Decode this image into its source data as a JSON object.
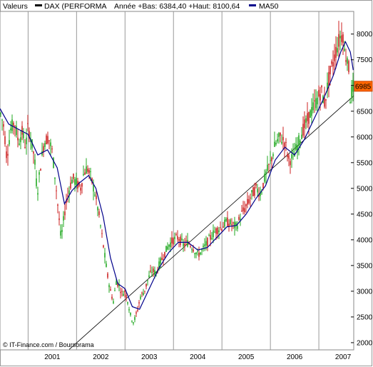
{
  "legend": {
    "label": "Valeurs",
    "series_name": "DAX (PERFORMA",
    "year_info": "Année +Bas: 6384,40 +Haut: 8100,64",
    "ma_name": "MA50",
    "colors": {
      "series": "#000000",
      "ma": "#00008b"
    }
  },
  "credit": "© IT-Finance.com / Boursorama",
  "last_price": "6985",
  "chart_data": {
    "type": "candlestick",
    "x_range": [
      2000.42,
      2007.72
    ],
    "y_range": [
      1860,
      8440
    ],
    "y_ticks": [
      2000,
      2500,
      3000,
      3500,
      4000,
      4500,
      5000,
      5500,
      6000,
      6500,
      7000,
      7500,
      8000
    ],
    "y_tick_labels": [
      "2000",
      "2500",
      "3000",
      "3500",
      "4000",
      "4500",
      "5000",
      "5500",
      "6000",
      "6500",
      "7000",
      "7500",
      "8000"
    ],
    "x_tick_labels": [
      {
        "year": 2001,
        "label": "2001"
      },
      {
        "year": 2002,
        "label": "2002"
      },
      {
        "year": 2003,
        "label": "2003"
      },
      {
        "year": 2004,
        "label": "2004"
      },
      {
        "year": 2005,
        "label": "2005"
      },
      {
        "year": 2006,
        "label": "2006"
      },
      {
        "year": 2007,
        "label": "2007"
      }
    ],
    "gridlines": "vertical",
    "up_color": "#22aa22",
    "down_color": "#cc2222",
    "price_path": [
      {
        "t": 2000.42,
        "v": 6500
      },
      {
        "t": 2000.5,
        "v": 6200
      },
      {
        "t": 2000.56,
        "v": 5600
      },
      {
        "t": 2000.64,
        "v": 6150
      },
      {
        "t": 2000.72,
        "v": 6300
      },
      {
        "t": 2000.8,
        "v": 5900
      },
      {
        "t": 2000.88,
        "v": 6100
      },
      {
        "t": 2000.95,
        "v": 5800
      },
      {
        "t": 2001.0,
        "v": 6200
      },
      {
        "t": 2001.06,
        "v": 5950
      },
      {
        "t": 2001.13,
        "v": 5600
      },
      {
        "t": 2001.19,
        "v": 4900
      },
      {
        "t": 2001.25,
        "v": 5400
      },
      {
        "t": 2001.33,
        "v": 5900
      },
      {
        "t": 2001.42,
        "v": 6000
      },
      {
        "t": 2001.5,
        "v": 5700
      },
      {
        "t": 2001.56,
        "v": 5200
      },
      {
        "t": 2001.62,
        "v": 4600
      },
      {
        "t": 2001.68,
        "v": 4000
      },
      {
        "t": 2001.72,
        "v": 4300
      },
      {
        "t": 2001.78,
        "v": 4700
      },
      {
        "t": 2001.85,
        "v": 5000
      },
      {
        "t": 2001.92,
        "v": 5200
      },
      {
        "t": 2002.0,
        "v": 5100
      },
      {
        "t": 2002.08,
        "v": 5000
      },
      {
        "t": 2002.15,
        "v": 5300
      },
      {
        "t": 2002.22,
        "v": 5400
      },
      {
        "t": 2002.3,
        "v": 5200
      },
      {
        "t": 2002.38,
        "v": 4900
      },
      {
        "t": 2002.46,
        "v": 4500
      },
      {
        "t": 2002.52,
        "v": 4100
      },
      {
        "t": 2002.58,
        "v": 3700
      },
      {
        "t": 2002.64,
        "v": 3300
      },
      {
        "t": 2002.7,
        "v": 3000
      },
      {
        "t": 2002.76,
        "v": 2800
      },
      {
        "t": 2002.82,
        "v": 3200
      },
      {
        "t": 2002.88,
        "v": 3100
      },
      {
        "t": 2002.94,
        "v": 2950
      },
      {
        "t": 2003.0,
        "v": 3000
      },
      {
        "t": 2003.06,
        "v": 2800
      },
      {
        "t": 2003.12,
        "v": 2500
      },
      {
        "t": 2003.18,
        "v": 2400
      },
      {
        "t": 2003.25,
        "v": 2600
      },
      {
        "t": 2003.32,
        "v": 2900
      },
      {
        "t": 2003.4,
        "v": 3000
      },
      {
        "t": 2003.48,
        "v": 3250
      },
      {
        "t": 2003.56,
        "v": 3400
      },
      {
        "t": 2003.64,
        "v": 3350
      },
      {
        "t": 2003.72,
        "v": 3550
      },
      {
        "t": 2003.8,
        "v": 3700
      },
      {
        "t": 2003.9,
        "v": 3900
      },
      {
        "t": 2004.0,
        "v": 4000
      },
      {
        "t": 2004.1,
        "v": 4050
      },
      {
        "t": 2004.2,
        "v": 3900
      },
      {
        "t": 2004.3,
        "v": 3950
      },
      {
        "t": 2004.4,
        "v": 3850
      },
      {
        "t": 2004.5,
        "v": 3700
      },
      {
        "t": 2004.6,
        "v": 3800
      },
      {
        "t": 2004.7,
        "v": 3950
      },
      {
        "t": 2004.8,
        "v": 4100
      },
      {
        "t": 2004.9,
        "v": 4200
      },
      {
        "t": 2005.0,
        "v": 4250
      },
      {
        "t": 2005.1,
        "v": 4350
      },
      {
        "t": 2005.2,
        "v": 4300
      },
      {
        "t": 2005.3,
        "v": 4250
      },
      {
        "t": 2005.4,
        "v": 4500
      },
      {
        "t": 2005.5,
        "v": 4650
      },
      {
        "t": 2005.6,
        "v": 4850
      },
      {
        "t": 2005.7,
        "v": 5000
      },
      {
        "t": 2005.8,
        "v": 4900
      },
      {
        "t": 2005.9,
        "v": 5250
      },
      {
        "t": 2006.0,
        "v": 5500
      },
      {
        "t": 2006.1,
        "v": 5850
      },
      {
        "t": 2006.2,
        "v": 6000
      },
      {
        "t": 2006.3,
        "v": 5900
      },
      {
        "t": 2006.38,
        "v": 5550
      },
      {
        "t": 2006.46,
        "v": 5600
      },
      {
        "t": 2006.55,
        "v": 5800
      },
      {
        "t": 2006.65,
        "v": 6100
      },
      {
        "t": 2006.75,
        "v": 6300
      },
      {
        "t": 2006.85,
        "v": 6500
      },
      {
        "t": 2006.95,
        "v": 6700
      },
      {
        "t": 2007.05,
        "v": 6900
      },
      {
        "t": 2007.12,
        "v": 6650
      },
      {
        "t": 2007.2,
        "v": 7100
      },
      {
        "t": 2007.28,
        "v": 7400
      },
      {
        "t": 2007.36,
        "v": 7700
      },
      {
        "t": 2007.44,
        "v": 7950
      },
      {
        "t": 2007.5,
        "v": 8000
      },
      {
        "t": 2007.54,
        "v": 7500
      },
      {
        "t": 2007.58,
        "v": 7650
      },
      {
        "t": 2007.62,
        "v": 7300
      },
      {
        "t": 2007.65,
        "v": 6700
      },
      {
        "t": 2007.68,
        "v": 6900
      },
      {
        "t": 2007.71,
        "v": 6985
      }
    ],
    "ma_path": [
      {
        "t": 2000.42,
        "v": 6550
      },
      {
        "t": 2000.6,
        "v": 6250
      },
      {
        "t": 2000.8,
        "v": 6150
      },
      {
        "t": 2001.0,
        "v": 6050
      },
      {
        "t": 2001.2,
        "v": 5650
      },
      {
        "t": 2001.4,
        "v": 5750
      },
      {
        "t": 2001.6,
        "v": 5400
      },
      {
        "t": 2001.75,
        "v": 4700
      },
      {
        "t": 2001.9,
        "v": 4950
      },
      {
        "t": 2002.05,
        "v": 5100
      },
      {
        "t": 2002.25,
        "v": 5250
      },
      {
        "t": 2002.4,
        "v": 5000
      },
      {
        "t": 2002.55,
        "v": 4450
      },
      {
        "t": 2002.7,
        "v": 3650
      },
      {
        "t": 2002.85,
        "v": 3150
      },
      {
        "t": 2003.0,
        "v": 3050
      },
      {
        "t": 2003.15,
        "v": 2700
      },
      {
        "t": 2003.3,
        "v": 2650
      },
      {
        "t": 2003.5,
        "v": 3050
      },
      {
        "t": 2003.7,
        "v": 3450
      },
      {
        "t": 2003.9,
        "v": 3750
      },
      {
        "t": 2004.1,
        "v": 3950
      },
      {
        "t": 2004.3,
        "v": 3950
      },
      {
        "t": 2004.5,
        "v": 3800
      },
      {
        "t": 2004.7,
        "v": 3850
      },
      {
        "t": 2004.9,
        "v": 4050
      },
      {
        "t": 2005.1,
        "v": 4250
      },
      {
        "t": 2005.3,
        "v": 4280
      },
      {
        "t": 2005.5,
        "v": 4500
      },
      {
        "t": 2005.7,
        "v": 4800
      },
      {
        "t": 2005.9,
        "v": 5050
      },
      {
        "t": 2006.1,
        "v": 5550
      },
      {
        "t": 2006.3,
        "v": 5800
      },
      {
        "t": 2006.5,
        "v": 5650
      },
      {
        "t": 2006.7,
        "v": 5950
      },
      {
        "t": 2006.9,
        "v": 6350
      },
      {
        "t": 2007.1,
        "v": 6750
      },
      {
        "t": 2007.3,
        "v": 7200
      },
      {
        "t": 2007.45,
        "v": 7650
      },
      {
        "t": 2007.55,
        "v": 7850
      },
      {
        "t": 2007.65,
        "v": 7650
      },
      {
        "t": 2007.71,
        "v": 7300
      }
    ],
    "trendline": [
      {
        "t": 2001.85,
        "v": 1870
      },
      {
        "t": 2007.72,
        "v": 6800
      }
    ]
  }
}
